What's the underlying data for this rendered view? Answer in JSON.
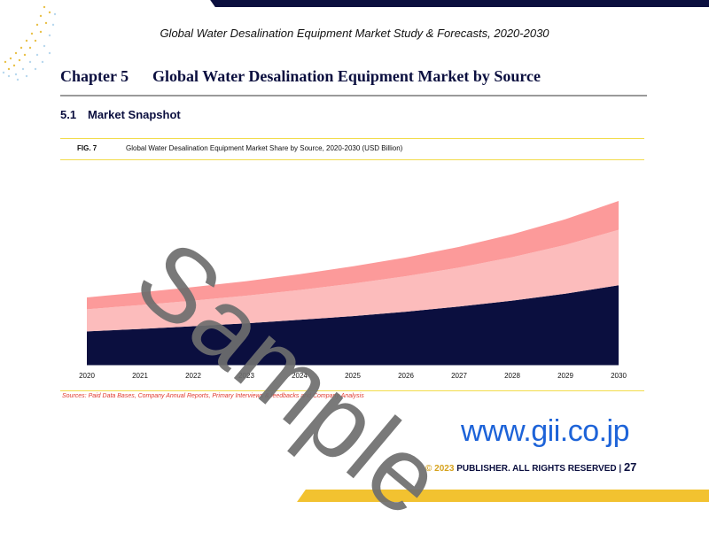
{
  "header": {
    "report_title": "Global Water Desalination Equipment Market Study & Forecasts, 2020-2030"
  },
  "chapter": {
    "number": "Chapter 5",
    "title": "Global Water Desalination Equipment Market by Source"
  },
  "section": {
    "number": "5.1",
    "title": "Market Snapshot"
  },
  "figure": {
    "label": "FIG. 7",
    "title": "Global Water Desalination Equipment Market Share by Source, 2020-2030 (USD Billion)"
  },
  "chart_data": {
    "type": "area",
    "stacked": true,
    "title": "Global Water Desalination Equipment Market Share by Source, 2020-2030 (USD Billion)",
    "xlabel": "",
    "ylabel": "",
    "grid": false,
    "legend": "none",
    "categories": [
      "2020",
      "2021",
      "2022",
      "2023",
      "2024",
      "2025",
      "2026",
      "2027",
      "2028",
      "2029",
      "2030"
    ],
    "series": [
      {
        "values": [
          13.5,
          14.5,
          15.6,
          16.8,
          18.2,
          19.7,
          21.5,
          23.6,
          26.0,
          28.8,
          32.2
        ],
        "color": "#0b0f3f"
      },
      {
        "values": [
          9.0,
          9.7,
          10.4,
          11.2,
          12.1,
          13.2,
          14.4,
          15.8,
          17.6,
          19.8,
          22.5
        ],
        "color": "#fcbcbc"
      },
      {
        "values": [
          4.8,
          5.1,
          5.5,
          5.9,
          6.4,
          7.0,
          7.6,
          8.4,
          9.3,
          10.4,
          11.7
        ],
        "color": "#fc9a9a"
      }
    ],
    "ylim": [
      0,
      70
    ]
  },
  "source": {
    "text": "Sources: Paid Data Bases, Company Annual Reports, Primary Interviews & feedbacks and Company Analysis"
  },
  "footer": {
    "website": "www.gii.co.jp",
    "copyright_year": "© 2023",
    "copyright_text": "PUBLISHER. ALL RIGHTS RESERVED |",
    "page_number": "27"
  },
  "watermark": {
    "text": "Sample"
  }
}
